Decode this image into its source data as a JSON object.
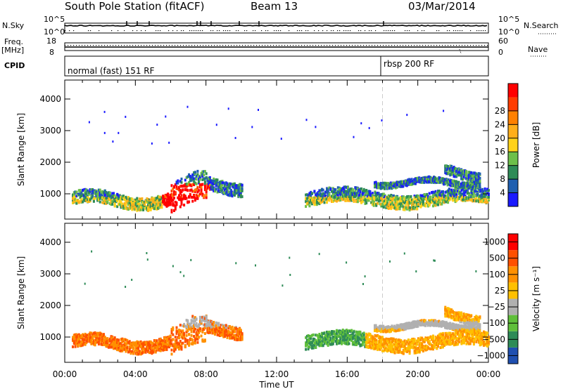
{
  "header": {
    "station": "South Pole Station (fitACF)",
    "beam": "Beam 13",
    "date": "03/Mar/2014"
  },
  "strip_labels": {
    "nsky": "N.Sky",
    "nsearch": "N.Search",
    "freq": "Freq.",
    "freq_unit": "[MHz]",
    "cpid": "CPID",
    "nave": "Nave"
  },
  "strip_ticks": {
    "noise_left": [
      "10^5",
      "10^0"
    ],
    "noise_right": [
      "10^5",
      "10^0"
    ],
    "freq_left": [
      "18",
      "8"
    ],
    "nave_right": [
      "60",
      "0"
    ]
  },
  "cpid_segments": [
    {
      "label": "normal (fast) 151 RF",
      "start_hour": 0
    },
    {
      "label": "rbsp 200 RF",
      "start_hour": 18
    }
  ],
  "chart_data": [
    {
      "type": "heatmap",
      "title": "",
      "xlabel": "Time UT",
      "ylabel": "Slant Range [km]",
      "x_ticks": [
        "00:00",
        "04:00",
        "08:00",
        "12:00",
        "16:00",
        "20:00",
        "00:00"
      ],
      "xlim_hours": [
        0,
        24
      ],
      "y_ticks": [
        1000,
        2000,
        3000,
        4000
      ],
      "ylim": [
        200,
        4600
      ],
      "colorbar": {
        "label": "Power [dB]",
        "tick_labels": [
          "4",
          "8",
          "12",
          "16",
          "20",
          "24",
          "28"
        ],
        "colors": [
          "#1a1aff",
          "#1f5fb0",
          "#2e8b57",
          "#6dbf4a",
          "#ffd21a",
          "#ffae1a",
          "#ff8000",
          "#ff3c00",
          "#ff0000"
        ]
      },
      "echo_regions": [
        {
          "time_hours": [
            0.3,
            10.0
          ],
          "range_km": [
            500,
            1700
          ],
          "level": "mixed, strongest near 07:00 (~28 dB)"
        },
        {
          "time_hours": [
            13.5,
            24.0
          ],
          "range_km": [
            500,
            2300
          ],
          "level": "mixed, moderate"
        }
      ]
    },
    {
      "type": "heatmap",
      "title": "",
      "xlabel": "Time UT",
      "ylabel": "Slant Range [km]",
      "x_ticks": [
        "00:00",
        "04:00",
        "08:00",
        "12:00",
        "16:00",
        "20:00",
        "00:00"
      ],
      "xlim_hours": [
        0,
        24
      ],
      "y_ticks": [
        1000,
        2000,
        3000,
        4000
      ],
      "ylim": [
        200,
        4600
      ],
      "colorbar": {
        "label": "Velocity [m s⁻¹]",
        "tick_labels": [
          "1000",
          "500",
          "100",
          "25",
          "−25",
          "−100",
          "−500",
          "−1000"
        ],
        "colors": [
          "#1f4fb0",
          "#2e8b57",
          "#5fbf3a",
          "#b0b0b0",
          "#ffc000",
          "#ff9000",
          "#ff5000",
          "#ff0000"
        ]
      },
      "echo_regions": [
        {
          "time_hours": [
            0.3,
            10.0
          ],
          "range_km": [
            500,
            2000
          ],
          "level": "mostly negative (−100 to −500)"
        },
        {
          "time_hours": [
            13.5,
            24.0
          ],
          "range_km": [
            500,
            2200
          ],
          "level": "mixed positive/negative"
        }
      ]
    }
  ],
  "colors": {
    "axis": "#000000",
    "marker_line": "#cccccc"
  }
}
